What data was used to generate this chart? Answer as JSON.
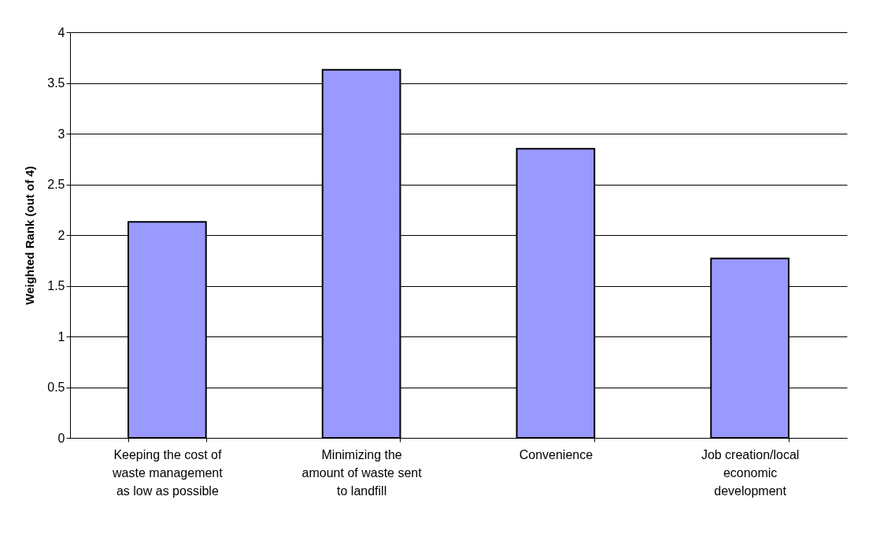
{
  "chart_data": {
    "type": "bar",
    "ylabel": "Weighted Rank (out of 4)",
    "categories": [
      "Keeping the cost of\nwaste management\nas low as possible",
      "Minimizing the\namount of waste sent\nto landfill",
      "Convenience",
      "Job creation/local\neconomic\ndevelopment"
    ],
    "values": [
      2.13,
      3.63,
      2.85,
      1.77
    ],
    "color": "#9999ff",
    "ylim": [
      0,
      4
    ],
    "yticks": [
      0,
      0.5,
      1,
      1.5,
      2,
      2.5,
      3,
      3.5,
      4
    ],
    "grid": "y"
  }
}
